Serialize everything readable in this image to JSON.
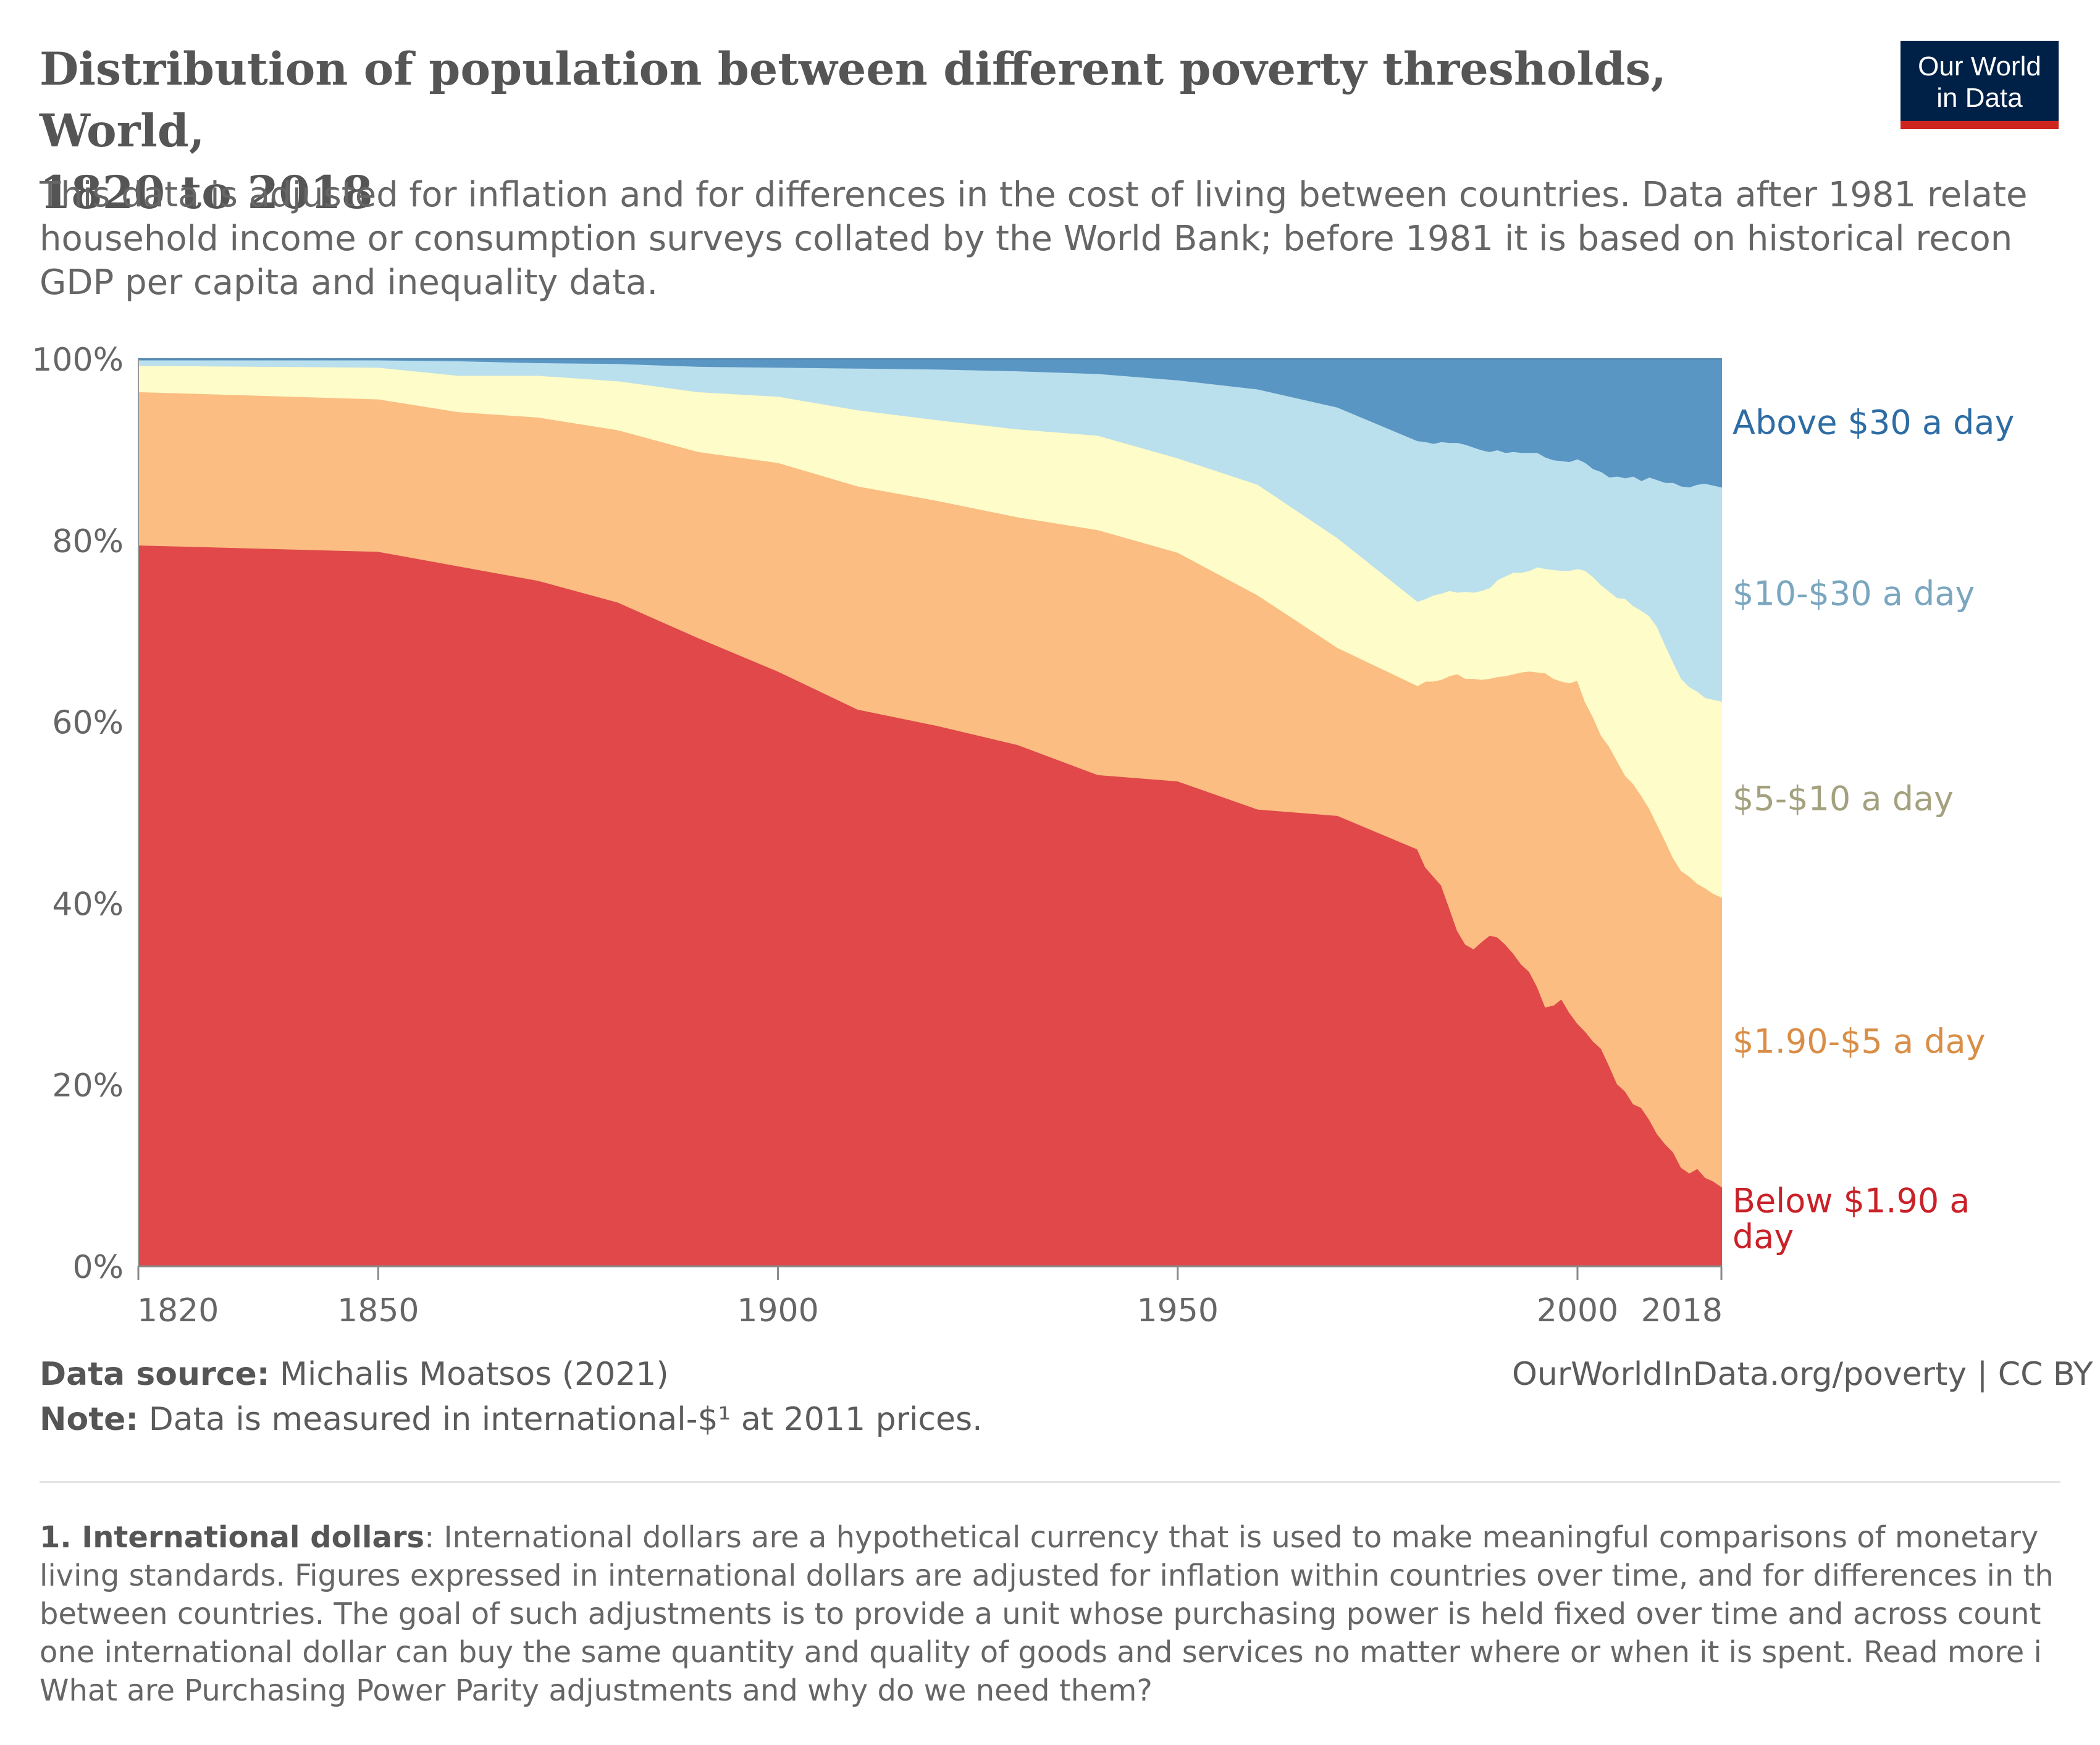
{
  "header": {
    "title_line1": "Distribution of population between different poverty thresholds, World,",
    "title_line2": "1820 to 2018",
    "subtitle_lines": [
      "This data is adjusted for inflation and for differences in the cost of living between countries. Data after 1981 relate",
      "household income or consumption surveys collated by the World Bank; before 1981 it is based on historical recon",
      "GDP per capita and inequality data."
    ],
    "logo_line1": "Our World",
    "logo_line2": "in Data"
  },
  "chart_data": {
    "type": "area",
    "stacked": true,
    "x_ticks": [
      1820,
      1850,
      1900,
      1950,
      2000,
      2018
    ],
    "y_ticks": [
      "0%",
      "20%",
      "40%",
      "60%",
      "80%",
      "100%"
    ],
    "xlim": [
      1820,
      2018
    ],
    "ylim": [
      0,
      100
    ],
    "grid": "horizontal dashed",
    "x": [
      1820,
      1850,
      1860,
      1870,
      1880,
      1890,
      1900,
      1910,
      1920,
      1930,
      1940,
      1950,
      1960,
      1970,
      1980,
      1981,
      1982,
      1983,
      1984,
      1985,
      1986,
      1987,
      1988,
      1989,
      1990,
      1991,
      1992,
      1993,
      1994,
      1995,
      1996,
      1997,
      1998,
      1999,
      2000,
      2001,
      2002,
      2003,
      2004,
      2005,
      2006,
      2007,
      2008,
      2009,
      2010,
      2011,
      2012,
      2013,
      2014,
      2015,
      2016,
      2017,
      2018
    ],
    "series": [
      {
        "name": "Below $1.90 a day",
        "color": "#e0484a",
        "label_color": "#c92128",
        "values": [
          79.5,
          78.8,
          77.2,
          75.6,
          73.2,
          69.3,
          65.6,
          61.4,
          59.6,
          57.5,
          54.2,
          53.5,
          50.4,
          49.7,
          46,
          44,
          43,
          42,
          39.5,
          37,
          35.5,
          35,
          35.8,
          36.5,
          36.3,
          35.5,
          34.5,
          33.3,
          32.5,
          30.8,
          28.6,
          28.8,
          29.5,
          28,
          26.8,
          25.9,
          24.8,
          24,
          22.1,
          20.1,
          19.3,
          17.9,
          17.5,
          16.2,
          14.6,
          13.5,
          12.6,
          10.9,
          10.3,
          10.8,
          9.8,
          9.4,
          8.8
        ]
      },
      {
        "name": "$1.90-$5 a day",
        "color": "#fbbd82",
        "label_color": "#d98e47",
        "values": [
          16.9,
          16.8,
          17,
          18,
          19,
          20.5,
          23,
          24.6,
          24.8,
          25.1,
          27,
          25.2,
          23.6,
          18.5,
          18,
          20.5,
          21.5,
          22.7,
          25.6,
          28.3,
          29.3,
          29.8,
          28.9,
          28.3,
          28.7,
          29.6,
          30.8,
          32.2,
          33.1,
          34.7,
          36.8,
          36,
          35,
          36.3,
          37.8,
          36.3,
          35.7,
          34.5,
          35.2,
          35.6,
          34.8,
          35.3,
          34.4,
          34.3,
          34.1,
          33.4,
          32.4,
          32.7,
          32.7,
          31.4,
          31.9,
          31.7,
          31.9
        ]
      },
      {
        "name": "$5-$10 a day",
        "color": "#fefcc9",
        "label_color": "#a3a17e",
        "values": [
          2.9,
          3.5,
          4,
          4.6,
          5.4,
          6.6,
          7.3,
          8.4,
          8.9,
          9.7,
          10.4,
          10.4,
          12.2,
          12.1,
          9.3,
          9.1,
          9.5,
          9.5,
          9.4,
          9,
          9.6,
          9.5,
          9.8,
          10,
          10.7,
          11,
          11.2,
          11,
          11.1,
          11.6,
          11.5,
          12,
          12.2,
          12.4,
          12.3,
          14.5,
          15.5,
          16.6,
          17.1,
          18,
          19.5,
          19.6,
          20.4,
          21.2,
          21.8,
          21.6,
          21.6,
          21.2,
          20.9,
          21.2,
          21,
          21.4,
          21.6
        ]
      },
      {
        "name": "$10-$30 a day",
        "color": "#bbe0ed",
        "label_color": "#7aa6bf",
        "values": [
          0.6,
          0.8,
          1.6,
          1.4,
          1.9,
          2.8,
          3.2,
          4.6,
          5.6,
          6.4,
          6.8,
          8.6,
          10.5,
          14.4,
          17.7,
          17.3,
          16.7,
          16.7,
          16.3,
          16.5,
          16.2,
          16,
          15.5,
          15,
          14.3,
          13.6,
          13.3,
          13.2,
          13,
          12.6,
          12.3,
          12.1,
          12.1,
          12,
          12.1,
          11.9,
          11.9,
          12.5,
          12.6,
          13.4,
          13.3,
          14.3,
          14.3,
          15.3,
          16.2,
          17.9,
          19.8,
          21.2,
          22,
          22.8,
          23.6,
          23.6,
          23.6
        ]
      },
      {
        "name": "Above $30 a day",
        "color": "#5a96c4",
        "label_color": "#2e6ca4",
        "values": [
          0.1,
          0.1,
          0.2,
          0.4,
          0.5,
          0.8,
          0.9,
          1,
          1.1,
          1.3,
          1.6,
          2.3,
          3.3,
          5.3,
          9,
          9.1,
          9.3,
          9.1,
          9.2,
          9.2,
          9.4,
          9.7,
          10,
          10.2,
          10,
          10.3,
          10.2,
          10.3,
          10.3,
          10.3,
          10.8,
          11.1,
          11.2,
          11.3,
          11,
          11.4,
          12.1,
          12.4,
          13,
          12.9,
          13.1,
          12.9,
          13.4,
          13,
          13.3,
          13.6,
          13.6,
          14,
          14.1,
          13.8,
          13.7,
          13.9,
          14.1
        ]
      }
    ]
  },
  "footer": {
    "source_label": "Data source:",
    "source_text": " Michalis Moatsos (2021)",
    "note_label": "Note:",
    "note_text": " Data is measured in international-$¹ at 2011 prices.",
    "credit": "OurWorldInData.org/poverty | CC BY"
  },
  "footnote": {
    "label": "1. International dollars",
    "first_line_rest": ": International dollars are a hypothetical currency that is used to make meaningful comparisons of monetary",
    "lines": [
      "living standards. Figures expressed in international dollars are adjusted for inflation within countries over time, and for differences in th",
      "between countries. The goal of such adjustments is to provide a unit whose purchasing power is held fixed over time and across count",
      "one international dollar can buy the same quantity and quality of goods and services no matter where or when it is spent. Read more i",
      "What are Purchasing Power Parity adjustments and why do we need them?"
    ]
  }
}
